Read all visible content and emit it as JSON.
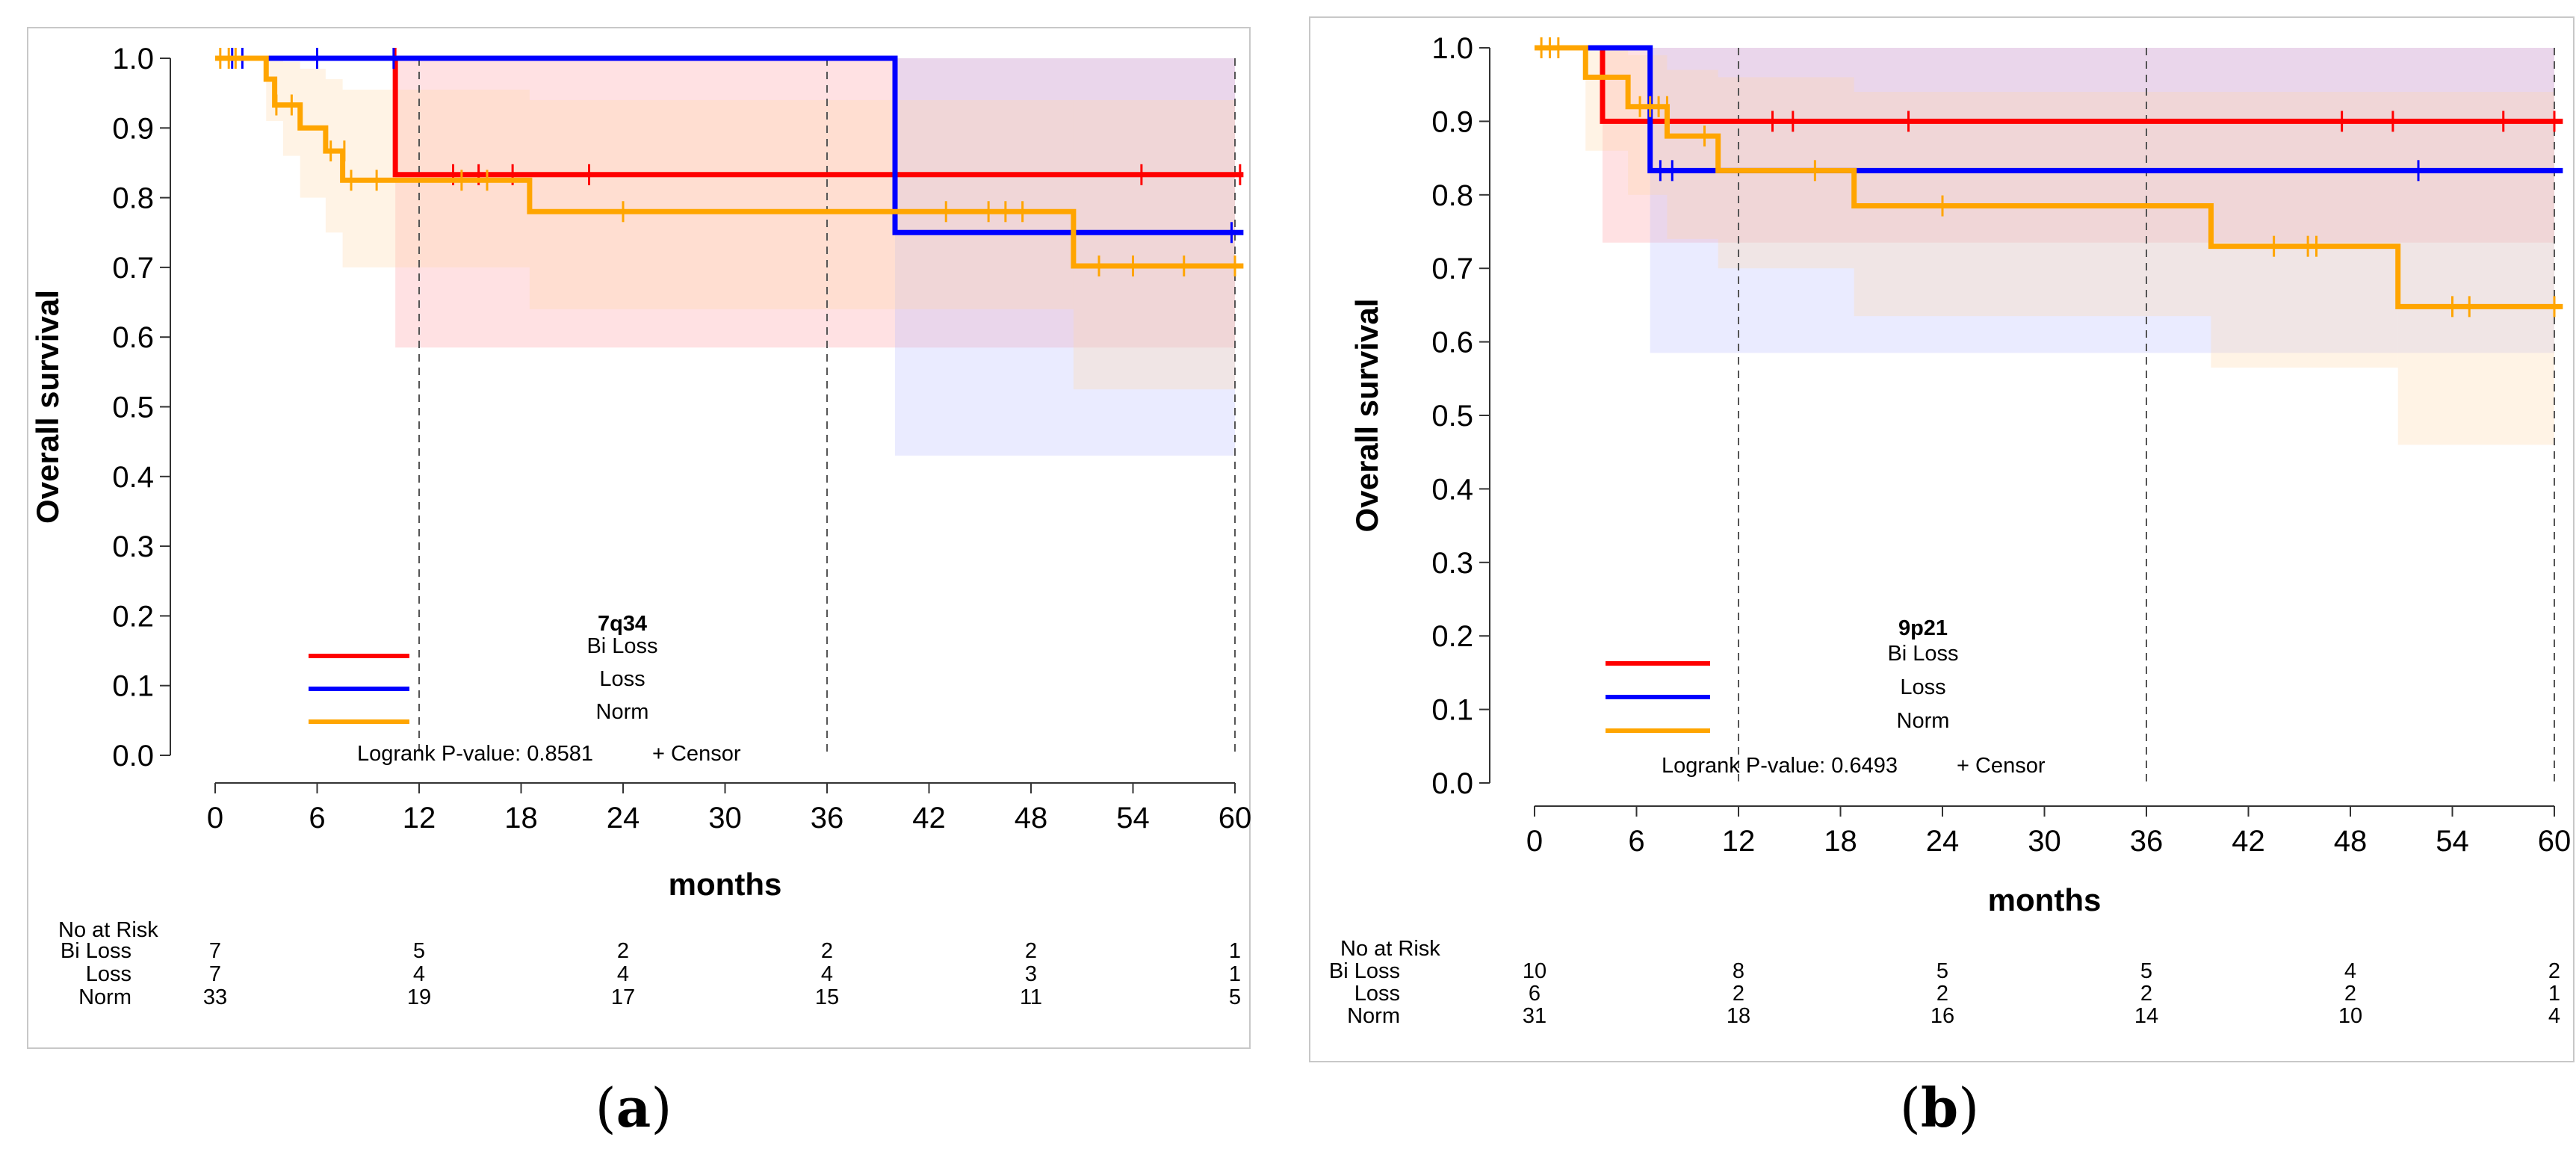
{
  "chart_data": [
    {
      "type": "line",
      "subtype": "kaplan-meier survival",
      "panel_caption": "(a)",
      "caption_letter": "a",
      "legend_title": "7q34",
      "xlabel": "months",
      "ylabel": "Overall survival",
      "xlim": [
        0,
        60
      ],
      "ylim": [
        0,
        1
      ],
      "xticks": [
        "0",
        "6",
        "12",
        "18",
        "24",
        "30",
        "36",
        "42",
        "48",
        "54",
        "60"
      ],
      "yticks": [
        "0.0",
        "0.1",
        "0.2",
        "0.3",
        "0.4",
        "0.5",
        "0.6",
        "0.7",
        "0.8",
        "0.9",
        "1.0"
      ],
      "ref_lines_x": [
        12,
        36,
        60
      ],
      "pvalue_text": "Logrank P-value: 0.8581",
      "censor_label": "+  Censor",
      "risk_header": "No at Risk",
      "risk_times": [
        0,
        12,
        24,
        36,
        48,
        60
      ],
      "series": [
        {
          "name": "Bi Loss",
          "color": "#ff0000",
          "band_color": "#ff9aa2",
          "steps": [
            [
              0,
              1.0
            ],
            [
              10.6,
              0.833
            ],
            [
              60.5,
              0.833
            ]
          ],
          "band": [
            [
              0,
              1.0,
              1.0
            ],
            [
              10.6,
              0.585,
              1.0
            ],
            [
              60,
              0.585,
              1.0
            ]
          ],
          "censors": [
            [
              10.6,
              1.0
            ],
            [
              14,
              0.833
            ],
            [
              15.5,
              0.833
            ],
            [
              17.5,
              0.833
            ],
            [
              22,
              0.833
            ],
            [
              54.5,
              0.833
            ],
            [
              60.3,
              0.833
            ]
          ],
          "at_risk": [
            7,
            5,
            2,
            2,
            2,
            1
          ]
        },
        {
          "name": "Loss",
          "color": "#0000ff",
          "band_color": "#b8bcff",
          "steps": [
            [
              0,
              1.0
            ],
            [
              40.0,
              0.75
            ],
            [
              60.5,
              0.75
            ]
          ],
          "band": [
            [
              0,
              1.0,
              1.0
            ],
            [
              40,
              0.43,
              1.0
            ],
            [
              60,
              0.43,
              1.0
            ]
          ],
          "censors": [
            [
              1.0,
              1.0
            ],
            [
              1.6,
              1.0
            ],
            [
              6.0,
              1.0
            ],
            [
              10.5,
              1.0
            ],
            [
              59.8,
              0.75
            ]
          ],
          "at_risk": [
            7,
            4,
            4,
            4,
            3,
            1
          ]
        },
        {
          "name": "Norm",
          "color": "#ffa500",
          "band_color": "#ffd8a8",
          "steps": [
            [
              0,
              1.0
            ],
            [
              3.0,
              0.97
            ],
            [
              3.5,
              0.933
            ],
            [
              5.0,
              0.9
            ],
            [
              6.5,
              0.867
            ],
            [
              7.5,
              0.825
            ],
            [
              18.5,
              0.78
            ],
            [
              50.5,
              0.702
            ],
            [
              60.5,
              0.702
            ]
          ],
          "band": [
            [
              0,
              1.0,
              1.0
            ],
            [
              3,
              0.91,
              1.0
            ],
            [
              4,
              0.86,
              0.995
            ],
            [
              5,
              0.8,
              0.985
            ],
            [
              6.5,
              0.75,
              0.97
            ],
            [
              7.5,
              0.7,
              0.955
            ],
            [
              18.5,
              0.64,
              0.94
            ],
            [
              50.5,
              0.525,
              0.94
            ],
            [
              60,
              0.525,
              0.94
            ]
          ],
          "censors": [
            [
              0.3,
              1.0
            ],
            [
              0.8,
              1.0
            ],
            [
              1.2,
              1.0
            ],
            [
              3.6,
              0.933
            ],
            [
              4.5,
              0.933
            ],
            [
              6.8,
              0.867
            ],
            [
              7.6,
              0.867
            ],
            [
              8.0,
              0.825
            ],
            [
              9.5,
              0.825
            ],
            [
              14.5,
              0.825
            ],
            [
              16,
              0.825
            ],
            [
              24,
              0.78
            ],
            [
              43,
              0.78
            ],
            [
              45.5,
              0.78
            ],
            [
              46.5,
              0.78
            ],
            [
              47.5,
              0.78
            ],
            [
              52,
              0.702
            ],
            [
              54,
              0.702
            ],
            [
              57,
              0.702
            ],
            [
              60,
              0.702
            ]
          ],
          "at_risk": [
            33,
            19,
            17,
            15,
            11,
            5
          ]
        }
      ]
    },
    {
      "type": "line",
      "subtype": "kaplan-meier survival",
      "panel_caption": "(b)",
      "caption_letter": "b",
      "legend_title": "9p21",
      "xlabel": "months",
      "ylabel": "Overall survival",
      "xlim": [
        0,
        60
      ],
      "ylim": [
        0,
        1
      ],
      "xticks": [
        "0",
        "6",
        "12",
        "18",
        "24",
        "30",
        "36",
        "42",
        "48",
        "54",
        "60"
      ],
      "yticks": [
        "0.0",
        "0.1",
        "0.2",
        "0.3",
        "0.4",
        "0.5",
        "0.6",
        "0.7",
        "0.8",
        "0.9",
        "1.0"
      ],
      "ref_lines_x": [
        12,
        36,
        60
      ],
      "pvalue_text": "Logrank P-value: 0.6493",
      "censor_label": "+  Censor",
      "risk_header": "No at Risk",
      "risk_times": [
        0,
        12,
        24,
        36,
        48,
        60
      ],
      "series": [
        {
          "name": "Bi Loss",
          "color": "#ff0000",
          "band_color": "#ff9aa2",
          "steps": [
            [
              0,
              1.0
            ],
            [
              4.0,
              0.9
            ],
            [
              60.5,
              0.9
            ]
          ],
          "band": [
            [
              0,
              1.0,
              1.0
            ],
            [
              4,
              0.735,
              1.0
            ],
            [
              60,
              0.735,
              1.0
            ]
          ],
          "censors": [
            [
              14,
              0.9
            ],
            [
              15.2,
              0.9
            ],
            [
              22,
              0.9
            ],
            [
              47.5,
              0.9
            ],
            [
              50.5,
              0.9
            ],
            [
              57,
              0.9
            ],
            [
              60,
              0.9
            ]
          ],
          "at_risk": [
            10,
            8,
            5,
            5,
            4,
            2
          ]
        },
        {
          "name": "Loss",
          "color": "#0000ff",
          "band_color": "#b8bcff",
          "steps": [
            [
              0,
              1.0
            ],
            [
              6.8,
              0.833
            ],
            [
              60.5,
              0.833
            ]
          ],
          "band": [
            [
              0,
              1.0,
              1.0
            ],
            [
              6.8,
              0.585,
              1.0
            ],
            [
              60,
              0.585,
              1.0
            ]
          ],
          "censors": [
            [
              7.4,
              0.833
            ],
            [
              8.1,
              0.833
            ],
            [
              52,
              0.833
            ]
          ],
          "at_risk": [
            6,
            2,
            2,
            2,
            2,
            1
          ]
        },
        {
          "name": "Norm",
          "color": "#ffa500",
          "band_color": "#ffd8a8",
          "steps": [
            [
              0,
              1.0
            ],
            [
              3.0,
              0.96
            ],
            [
              5.5,
              0.92
            ],
            [
              7.8,
              0.88
            ],
            [
              10.8,
              0.833
            ],
            [
              18.8,
              0.785
            ],
            [
              39.8,
              0.73
            ],
            [
              50.8,
              0.648
            ],
            [
              60.5,
              0.648
            ]
          ],
          "band": [
            [
              0,
              1.0,
              1.0
            ],
            [
              3,
              0.86,
              1.0
            ],
            [
              5.5,
              0.8,
              0.99
            ],
            [
              7.8,
              0.74,
              0.97
            ],
            [
              10.8,
              0.7,
              0.96
            ],
            [
              18.8,
              0.635,
              0.94
            ],
            [
              39.8,
              0.565,
              0.94
            ],
            [
              50.8,
              0.46,
              0.94
            ],
            [
              60,
              0.46,
              0.94
            ]
          ],
          "censors": [
            [
              0.4,
              1.0
            ],
            [
              0.9,
              1.0
            ],
            [
              1.4,
              1.0
            ],
            [
              6.2,
              0.92
            ],
            [
              6.8,
              0.92
            ],
            [
              7.3,
              0.92
            ],
            [
              7.8,
              0.92
            ],
            [
              10.0,
              0.88
            ],
            [
              16.5,
              0.833
            ],
            [
              24,
              0.785
            ],
            [
              43.5,
              0.73
            ],
            [
              45.5,
              0.73
            ],
            [
              46,
              0.73
            ],
            [
              54,
              0.648
            ],
            [
              55,
              0.648
            ],
            [
              60,
              0.648
            ]
          ],
          "at_risk": [
            31,
            18,
            16,
            14,
            10,
            4
          ]
        }
      ]
    }
  ]
}
